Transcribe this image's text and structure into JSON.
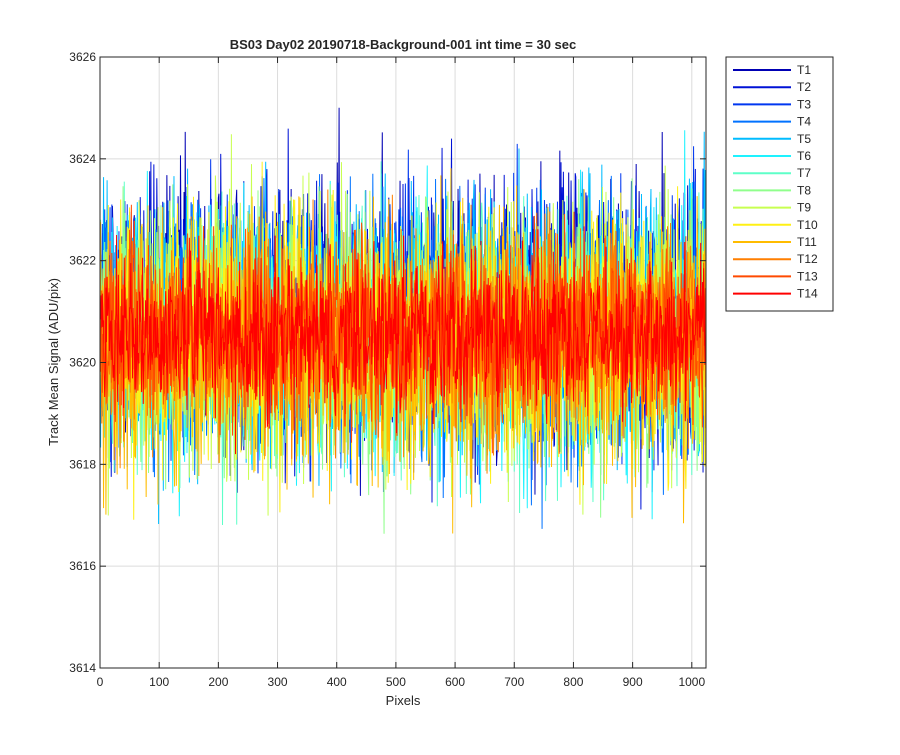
{
  "chart_data": {
    "type": "line",
    "title": "BS03 Day02 20190718-Background-001 int time = 30 sec",
    "xlabel": "Pixels",
    "ylabel": "Track Mean Signal (ADU/pix)",
    "xlim": [
      0,
      1024
    ],
    "ylim": [
      3614,
      3626
    ],
    "xticks": [
      0,
      100,
      200,
      300,
      400,
      500,
      600,
      700,
      800,
      900,
      1000
    ],
    "yticks": [
      3614,
      3616,
      3618,
      3620,
      3622,
      3624,
      3626
    ],
    "grid": true,
    "legend_position": "outside-top-right",
    "noise_note_visible": false,
    "series": [
      {
        "name": "T1",
        "color": "#0000b4",
        "mean": 3620.9,
        "std": 1.35
      },
      {
        "name": "T2",
        "color": "#0012d6",
        "mean": 3620.9,
        "std": 1.35
      },
      {
        "name": "T3",
        "color": "#0037f0",
        "mean": 3620.8,
        "std": 1.3
      },
      {
        "name": "T4",
        "color": "#0072ff",
        "mean": 3620.7,
        "std": 1.3
      },
      {
        "name": "T5",
        "color": "#00bcff",
        "mean": 3620.6,
        "std": 1.3
      },
      {
        "name": "T6",
        "color": "#1ef2ff",
        "mean": 3620.5,
        "std": 1.3
      },
      {
        "name": "T7",
        "color": "#5effc8",
        "mean": 3620.5,
        "std": 1.3
      },
      {
        "name": "T8",
        "color": "#90ff8c",
        "mean": 3620.5,
        "std": 1.3
      },
      {
        "name": "T9",
        "color": "#c8ff50",
        "mean": 3620.5,
        "std": 1.3
      },
      {
        "name": "T10",
        "color": "#fff014",
        "mean": 3620.4,
        "std": 1.3
      },
      {
        "name": "T11",
        "color": "#ffbc00",
        "mean": 3620.3,
        "std": 1.3
      },
      {
        "name": "T12",
        "color": "#ff7f00",
        "mean": 3620.5,
        "std": 1.0
      },
      {
        "name": "T13",
        "color": "#ff4a00",
        "mean": 3620.6,
        "std": 0.9
      },
      {
        "name": "T14",
        "color": "#ff0000",
        "mean": 3620.6,
        "std": 0.8
      }
    ]
  }
}
